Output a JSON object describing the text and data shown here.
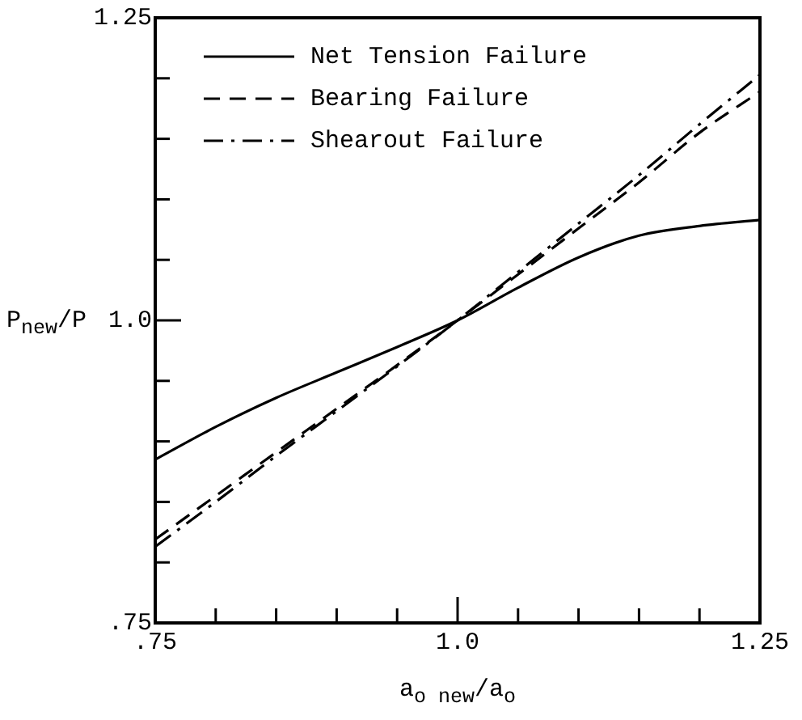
{
  "chart_data": {
    "type": "line",
    "xlabel": "a$_{o new}$/a$_{o}$",
    "ylabel": "P$_{new}$/P",
    "legend": "top left",
    "x": [
      0.75,
      0.8,
      0.85,
      0.9,
      0.95,
      1.0,
      1.05,
      1.1,
      1.15,
      1.2,
      1.25
    ],
    "series": [
      {
        "name": "Net Tension Failure",
        "color": "#000000",
        "line_style": "solid",
        "values": [
          0.885,
          0.912,
          0.936,
          0.957,
          0.978,
          1.0,
          1.027,
          1.052,
          1.07,
          1.078,
          1.083
        ]
      },
      {
        "name": "Bearing Failure",
        "color": "#000000",
        "line_style": "dashed",
        "values": [
          0.819,
          0.855,
          0.891,
          0.927,
          0.963,
          1.0,
          1.038,
          1.076,
          1.114,
          1.155,
          1.189
        ]
      },
      {
        "name": "Shearout Failure",
        "color": "#000000",
        "line_style": "dashdot",
        "values": [
          0.813,
          0.85,
          0.888,
          0.925,
          0.962,
          1.0,
          1.04,
          1.08,
          1.12,
          1.162,
          1.203
        ]
      }
    ],
    "marker": "none",
    "xlim": [
      0.75,
      1.25
    ],
    "ylim": [
      0.75,
      1.25
    ],
    "xticks": [
      {
        "value": 0.75,
        "label": ".75"
      },
      {
        "value": 0.8,
        "label": null
      },
      {
        "value": 0.85,
        "label": null
      },
      {
        "value": 0.9,
        "label": null
      },
      {
        "value": 0.95,
        "label": null
      },
      {
        "value": 1.0,
        "label": "1.0"
      },
      {
        "value": 1.05,
        "label": null
      },
      {
        "value": 1.1,
        "label": null
      },
      {
        "value": 1.15,
        "label": null
      },
      {
        "value": 1.2,
        "label": null
      },
      {
        "value": 1.25,
        "label": "1.25"
      }
    ],
    "yticks": [
      {
        "value": 0.75,
        "label": ".75"
      },
      {
        "value": 0.8,
        "label": null
      },
      {
        "value": 0.85,
        "label": null
      },
      {
        "value": 0.9,
        "label": null
      },
      {
        "value": 0.95,
        "label": null
      },
      {
        "value": 1.0,
        "label": "1.0"
      },
      {
        "value": 1.05,
        "label": null
      },
      {
        "value": 1.1,
        "label": null
      },
      {
        "value": 1.15,
        "label": null
      },
      {
        "value": 1.2,
        "label": null
      },
      {
        "value": 1.25,
        "label": "1.25"
      }
    ]
  }
}
